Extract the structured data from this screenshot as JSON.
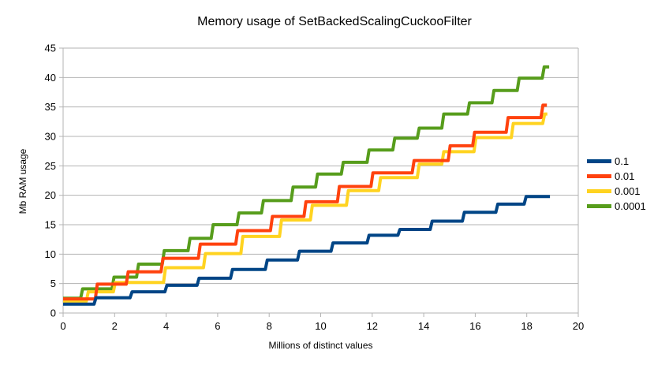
{
  "window": {
    "background": "#ffffff"
  },
  "colors": {
    "grid": "#b3b3b3",
    "axis": "#b3b3b3",
    "text": "#000000",
    "series_blue": "#004586",
    "series_red": "#ff420e",
    "series_yellow": "#ffd320",
    "series_green": "#579d1c"
  },
  "chart_data": {
    "type": "line",
    "step": true,
    "title": "Memory usage of SetBackedScalingCuckooFilter",
    "xlabel": "Millions of distinct values",
    "ylabel": "Mb RAM usage",
    "xlim": [
      0,
      20
    ],
    "ylim": [
      0,
      45
    ],
    "x_ticks": [
      0,
      2,
      4,
      6,
      8,
      10,
      12,
      14,
      16,
      18,
      20
    ],
    "y_ticks": [
      0,
      5,
      10,
      15,
      20,
      25,
      30,
      35,
      40,
      45
    ],
    "grid": "horizontal",
    "legend_position": "right",
    "series": [
      {
        "name": "0.1",
        "color": "#004586",
        "x_end": 18.9,
        "steps": [
          [
            0,
            1.5
          ],
          [
            1.2,
            2.6
          ],
          [
            2.6,
            3.6
          ],
          [
            3.95,
            4.7
          ],
          [
            5.2,
            5.9
          ],
          [
            6.5,
            7.4
          ],
          [
            7.85,
            9.0
          ],
          [
            9.1,
            10.5
          ],
          [
            10.4,
            11.9
          ],
          [
            11.8,
            13.2
          ],
          [
            13.0,
            14.2
          ],
          [
            14.25,
            15.6
          ],
          [
            15.5,
            17.1
          ],
          [
            16.8,
            18.5
          ],
          [
            17.9,
            19.8
          ]
        ]
      },
      {
        "name": "0.01",
        "color": "#ff420e",
        "x_end": 18.78,
        "steps": [
          [
            0,
            2.4
          ],
          [
            1.25,
            4.9
          ],
          [
            2.45,
            7.0
          ],
          [
            3.8,
            9.3
          ],
          [
            5.25,
            11.7
          ],
          [
            6.7,
            14.0
          ],
          [
            8.05,
            16.4
          ],
          [
            9.35,
            18.9
          ],
          [
            10.65,
            21.5
          ],
          [
            11.95,
            23.8
          ],
          [
            13.55,
            25.9
          ],
          [
            14.95,
            28.4
          ],
          [
            15.9,
            30.7
          ],
          [
            17.2,
            33.2
          ],
          [
            18.55,
            35.3
          ]
        ]
      },
      {
        "name": "0.001",
        "color": "#ffd320",
        "x_end": 18.8,
        "steps": [
          [
            0,
            2.0
          ],
          [
            0.9,
            3.6
          ],
          [
            1.95,
            5.2
          ],
          [
            3.9,
            7.7
          ],
          [
            5.45,
            10.1
          ],
          [
            6.9,
            13.0
          ],
          [
            8.4,
            15.8
          ],
          [
            9.6,
            18.3
          ],
          [
            11.0,
            20.8
          ],
          [
            12.25,
            23.0
          ],
          [
            13.75,
            25.3
          ],
          [
            14.7,
            27.4
          ],
          [
            15.95,
            29.8
          ],
          [
            17.4,
            32.2
          ],
          [
            18.62,
            33.8
          ]
        ]
      },
      {
        "name": "0.0001",
        "color": "#579d1c",
        "x_end": 18.87,
        "steps": [
          [
            0,
            2.5
          ],
          [
            0.68,
            4.1
          ],
          [
            1.9,
            6.1
          ],
          [
            2.85,
            8.3
          ],
          [
            3.85,
            10.6
          ],
          [
            4.85,
            12.7
          ],
          [
            5.75,
            15.0
          ],
          [
            6.75,
            17.0
          ],
          [
            7.7,
            19.1
          ],
          [
            8.85,
            21.4
          ],
          [
            9.8,
            23.6
          ],
          [
            10.8,
            25.6
          ],
          [
            11.8,
            27.7
          ],
          [
            12.8,
            29.7
          ],
          [
            13.75,
            31.4
          ],
          [
            14.7,
            33.8
          ],
          [
            15.7,
            35.7
          ],
          [
            16.65,
            37.8
          ],
          [
            17.63,
            39.9
          ],
          [
            18.6,
            41.8
          ]
        ]
      }
    ]
  }
}
